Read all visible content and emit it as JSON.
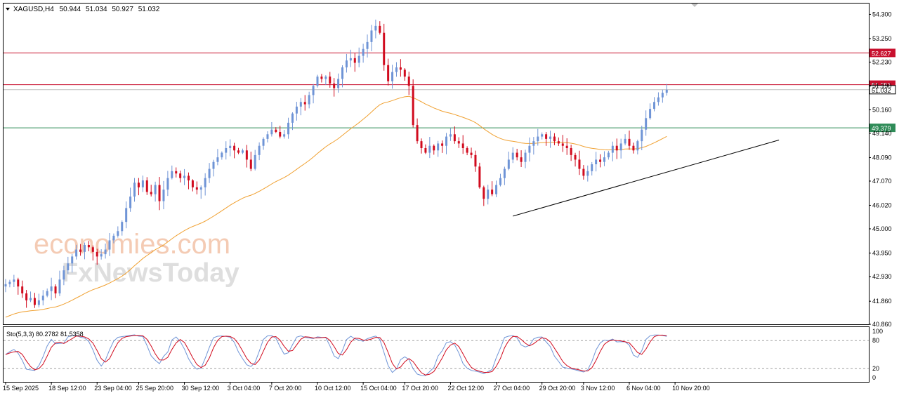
{
  "header": {
    "symbol": "XAGUSD,H4",
    "open": "50.944",
    "high": "51.034",
    "low": "50.927",
    "close": "51.032"
  },
  "indicator_label": "Sto(5,3,3) 80.2782 81.5358",
  "watermark": {
    "line1": "economies.com",
    "line2": "FxNewsToday"
  },
  "colors": {
    "bull": "#6f94d6",
    "bear": "#d10b1e",
    "ma": "#f0a030",
    "resistance": "#c8102e",
    "support": "#2e8b57",
    "trendline": "#000000",
    "stoch_main": "#6f94d6",
    "stoch_signal": "#d10b1e",
    "grid_axis": "#000000"
  },
  "chart_data": {
    "type": "candlestick",
    "price_ticks": [
      "54.300",
      "53.250",
      "52.230",
      "51.190",
      "50.160",
      "49.140",
      "48.090",
      "47.070",
      "46.020",
      "45.000",
      "43.950",
      "42.930",
      "41.860",
      "40.860"
    ],
    "price_range": [
      40.86,
      54.77
    ],
    "horizontal_levels": [
      {
        "value": 52.627,
        "label": "52.627",
        "color": "resistance"
      },
      {
        "value": 51.251,
        "label": "51.251",
        "color": "resistance"
      },
      {
        "value": 49.379,
        "label": "49.379",
        "color": "support"
      }
    ],
    "current_price": {
      "value": 51.032,
      "label": "51.032"
    },
    "trendline": {
      "from": {
        "bar": 122,
        "price": 45.55
      },
      "to": {
        "bar": 186,
        "price": 48.85
      }
    },
    "x_labels": [
      {
        "bar": 0,
        "text": "15 Sep 2025"
      },
      {
        "bar": 11,
        "text": "18 Sep 12:00"
      },
      {
        "bar": 22,
        "text": "23 Sep 04:00"
      },
      {
        "bar": 32,
        "text": "25 Sep 20:00"
      },
      {
        "bar": 43,
        "text": "30 Sep 12:00"
      },
      {
        "bar": 54,
        "text": "3 Oct 04:00"
      },
      {
        "bar": 64,
        "text": "7 Oct 20:00"
      },
      {
        "bar": 75,
        "text": "10 Oct 12:00"
      },
      {
        "bar": 86,
        "text": "15 Oct 04:00"
      },
      {
        "bar": 96,
        "text": "17 Oct 20:00"
      },
      {
        "bar": 107,
        "text": "22 Oct 12:00"
      },
      {
        "bar": 118,
        "text": "27 Oct 04:00"
      },
      {
        "bar": 129,
        "text": "29 Oct 20:00"
      },
      {
        "bar": 139,
        "text": "3 Nov 12:00"
      },
      {
        "bar": 150,
        "text": "6 Nov 04:00"
      },
      {
        "bar": 161,
        "text": "10 Nov 20:00"
      }
    ],
    "close_series": [
      42.6,
      42.7,
      42.8,
      42.5,
      42.2,
      41.9,
      42.0,
      41.7,
      41.9,
      42.1,
      42.3,
      42.5,
      42.2,
      42.8,
      43.2,
      43.5,
      43.8,
      44.1,
      44.0,
      44.3,
      44.2,
      44.0,
      43.8,
      43.9,
      44.1,
      44.5,
      44.7,
      44.9,
      45.3,
      45.9,
      46.4,
      47.0,
      46.8,
      47.1,
      46.6,
      46.5,
      46.9,
      46.2,
      46.7,
      47.2,
      47.5,
      47.4,
      47.2,
      47.3,
      47.1,
      46.8,
      46.7,
      46.8,
      47.2,
      47.6,
      47.9,
      48.1,
      48.3,
      48.5,
      48.6,
      48.4,
      48.3,
      48.4,
      48.0,
      47.6,
      48.2,
      48.6,
      48.9,
      49.1,
      49.3,
      49.2,
      49.0,
      49.1,
      49.6,
      50.0,
      50.3,
      50.5,
      50.4,
      50.8,
      51.2,
      51.6,
      51.5,
      51.6,
      51.3,
      51.1,
      51.5,
      52.0,
      52.3,
      52.4,
      52.2,
      52.5,
      52.8,
      53.1,
      53.6,
      53.8,
      53.5,
      52.1,
      51.4,
      51.8,
      52.0,
      51.9,
      51.6,
      51.2,
      49.5,
      48.8,
      48.5,
      48.3,
      48.6,
      48.4,
      48.7,
      48.6,
      49.0,
      49.1,
      48.8,
      48.7,
      48.5,
      48.3,
      48.2,
      47.7,
      46.8,
      46.3,
      46.7,
      46.5,
      46.9,
      47.2,
      47.6,
      48.0,
      48.3,
      48.1,
      47.9,
      48.3,
      48.6,
      48.8,
      49.0,
      49.1,
      48.9,
      49.0,
      48.8,
      48.7,
      48.6,
      48.5,
      48.2,
      48.0,
      47.6,
      47.3,
      47.5,
      47.8,
      48.0,
      47.9,
      48.1,
      48.3,
      48.6,
      48.4,
      48.7,
      48.9,
      48.6,
      48.4,
      48.8,
      49.3,
      49.8,
      50.2,
      50.5,
      50.7,
      50.9,
      51.032
    ]
  }
}
